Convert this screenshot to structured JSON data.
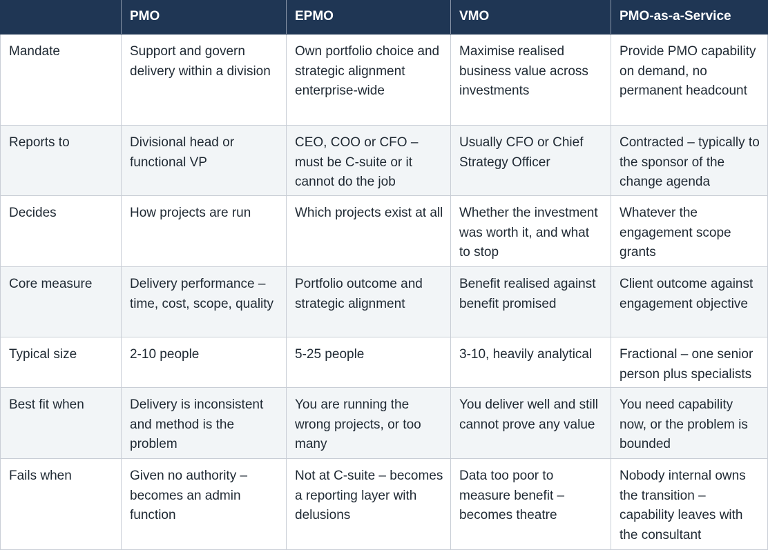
{
  "table": {
    "headers": [
      "",
      "PMO",
      "EPMO",
      "VMO",
      "PMO-as-a-Service"
    ],
    "rows": [
      {
        "label": "Mandate",
        "cells": [
          "Support and govern delivery within a division",
          "Own portfolio choice and strategic alignment enterprise-wide",
          "Maximise realised business value across investments",
          "Provide PMO capability on demand, no permanent headcount"
        ]
      },
      {
        "label": "Reports to",
        "cells": [
          "Divisional head or functional VP",
          "CEO, COO or CFO – must be C-suite or it cannot do the job",
          "Usually CFO or Chief Strategy Officer",
          "Contracted – typically to the sponsor of the change agenda"
        ]
      },
      {
        "label": "Decides",
        "cells": [
          "How projects are run",
          "Which projects exist at all",
          "Whether the investment was worth it, and what to stop",
          "Whatever the engagement scope grants"
        ]
      },
      {
        "label": "Core measure",
        "cells": [
          "Delivery performance – time, cost, scope, quality",
          "Portfolio outcome and strategic alignment",
          "Benefit realised against benefit promised",
          "Client outcome against engagement objective"
        ]
      },
      {
        "label": "Typical size",
        "cells": [
          "2-10 people",
          "5-25 people",
          "3-10, heavily analytical",
          "Fractional – one senior person plus specialists"
        ]
      },
      {
        "label": "Best fit when",
        "cells": [
          "Delivery is inconsistent and method is the problem",
          "You are running the wrong projects, or too many",
          "You deliver well and still cannot prove any value",
          "You need capability now, or the problem is bounded"
        ]
      },
      {
        "label": "Fails when",
        "cells": [
          "Given no authority – becomes an admin function",
          "Not at C-suite – becomes a reporting layer with delusions",
          "Data too poor to measure benefit – becomes theatre",
          "Nobody internal owns the transition – capability leaves with the consultant"
        ]
      }
    ]
  },
  "colors": {
    "header_bg": "#1f3654",
    "header_text": "#ffffff",
    "alt_row_bg": "#f2f5f7",
    "border": "#c9ced6"
  }
}
